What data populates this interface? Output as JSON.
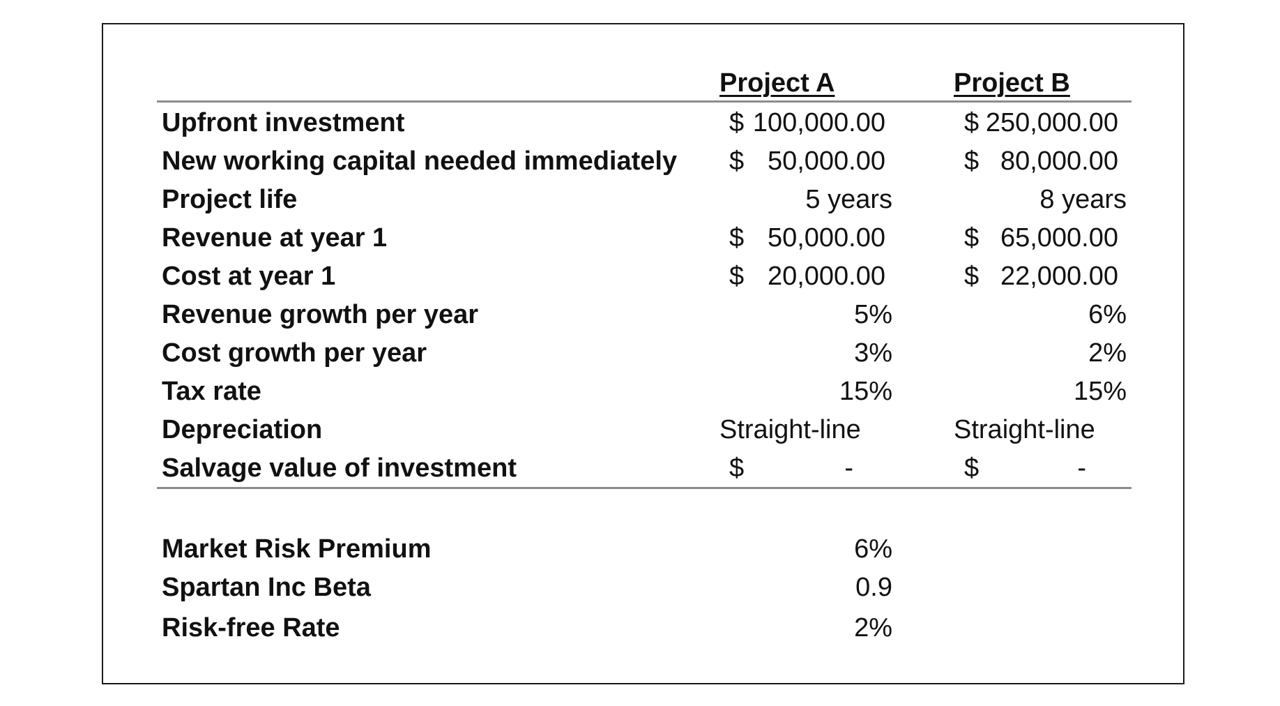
{
  "headers": {
    "project_a": "Project A",
    "project_b": "Project B"
  },
  "rows": [
    {
      "label": "Upfront investment",
      "a_sym": "$",
      "a": "100,000.00",
      "b_sym": "$",
      "b": "250,000.00"
    },
    {
      "label": "New working capital needed immediately",
      "a_sym": "$",
      "a": "50,000.00",
      "b_sym": "$",
      "b": "80,000.00"
    },
    {
      "label": "Project life",
      "a": "5 years",
      "b": "8 years"
    },
    {
      "label": "Revenue at year 1",
      "a_sym": "$",
      "a": "50,000.00",
      "b_sym": "$",
      "b": "65,000.00"
    },
    {
      "label": "Cost at year 1",
      "a_sym": "$",
      "a": "20,000.00",
      "b_sym": "$",
      "b": "22,000.00"
    },
    {
      "label": "Revenue growth per year",
      "a": "5%",
      "b": "6%"
    },
    {
      "label": "Cost growth per year",
      "a": "3%",
      "b": "2%"
    },
    {
      "label": "Tax rate",
      "a": "15%",
      "b": "15%"
    },
    {
      "label": "Depreciation",
      "a": "Straight-line",
      "b": "Straight-line"
    },
    {
      "label": "Salvage value of investment",
      "a_sym": "$",
      "a": "-",
      "b_sym": "$",
      "b": "-"
    }
  ],
  "market": [
    {
      "label": "Market Risk Premium",
      "value": "6%"
    },
    {
      "label": "Spartan Inc Beta",
      "value": "0.9"
    },
    {
      "label": "Risk-free Rate",
      "value": "2%"
    }
  ]
}
